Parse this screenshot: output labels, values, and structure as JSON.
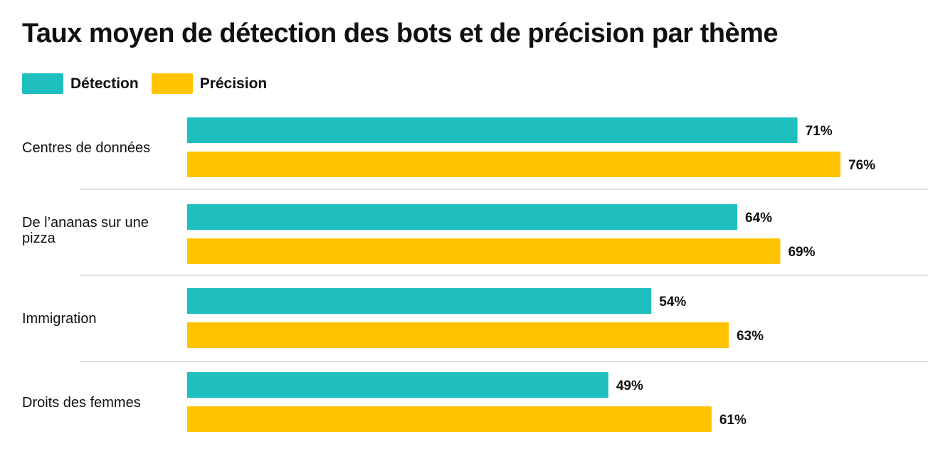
{
  "chart_data": {
    "type": "bar",
    "orientation": "horizontal",
    "title": "Taux moyen de détection des bots et de précision par thème",
    "categories": [
      [
        "Centres de données"
      ],
      [
        "De l’ananas sur une",
        "pizza"
      ],
      [
        "Immigration"
      ],
      [
        "Droits des femmes"
      ]
    ],
    "series": [
      {
        "name": "Détection",
        "color": "#1fbfbf",
        "values": [
          71,
          64,
          54,
          49
        ],
        "labels": [
          "71%",
          "64%",
          "54%",
          "49%"
        ]
      },
      {
        "name": "Précision",
        "color": "#ffc300",
        "values": [
          76,
          69,
          63,
          61
        ],
        "labels": [
          "76%",
          "69%",
          "63%",
          "61%"
        ]
      }
    ],
    "xlim": [
      0,
      100
    ],
    "unit": "%",
    "grid": false,
    "legend": "top-left"
  }
}
